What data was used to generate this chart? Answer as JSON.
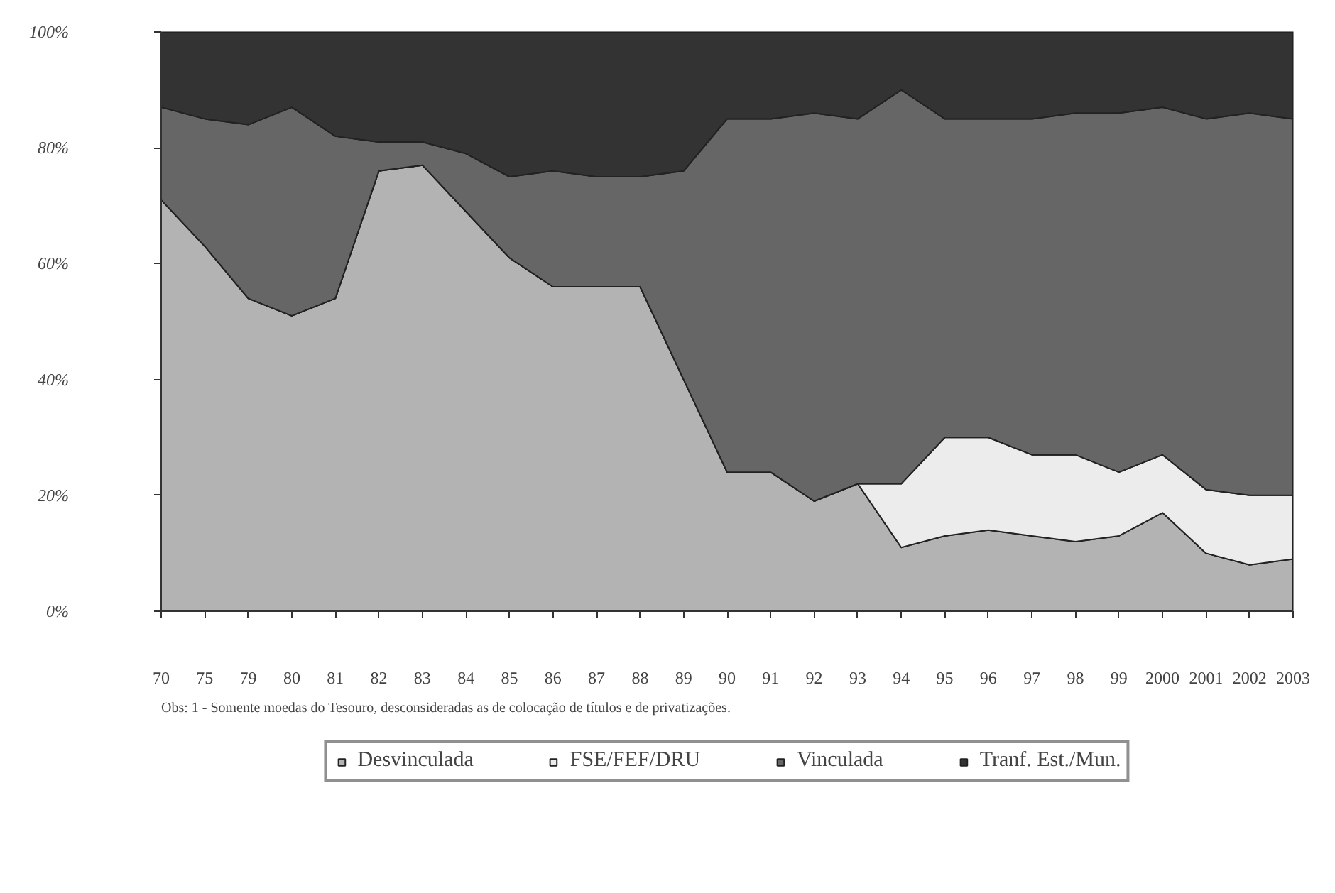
{
  "chart_data": {
    "type": "area",
    "stacked": true,
    "categories": [
      "70",
      "75",
      "79",
      "80",
      "81",
      "82",
      "83",
      "84",
      "85",
      "86",
      "87",
      "88",
      "89",
      "90",
      "91",
      "92",
      "93",
      "94",
      "95",
      "96",
      "97",
      "98",
      "99",
      "2000",
      "2001",
      "2002",
      "2003"
    ],
    "series": [
      {
        "name": "Desvinculada",
        "color": "#b3b3b3",
        "values": [
          71,
          63,
          54,
          51,
          54,
          76,
          77,
          69,
          61,
          56,
          56,
          56,
          40,
          24,
          24,
          19,
          22,
          11,
          13,
          14,
          13,
          12,
          13,
          17,
          10,
          8,
          9
        ]
      },
      {
        "name": "FSE/FEF/DRU",
        "color": "#ececec",
        "values": [
          0,
          0,
          0,
          0,
          0,
          0,
          0,
          0,
          0,
          0,
          0,
          0,
          0,
          0,
          0,
          0,
          0,
          11,
          17,
          16,
          14,
          15,
          11,
          10,
          11,
          12,
          11
        ]
      },
      {
        "name": "Vinculada",
        "color": "#666666",
        "values": [
          16,
          22,
          30,
          36,
          28,
          5,
          4,
          10,
          14,
          20,
          19,
          19,
          36,
          61,
          61,
          67,
          63,
          68,
          55,
          55,
          58,
          59,
          62,
          60,
          64,
          66,
          65
        ]
      },
      {
        "name": "Tranf. Est./Mun.",
        "color": "#333333",
        "values": [
          13,
          15,
          16,
          13,
          18,
          19,
          19,
          21,
          25,
          24,
          25,
          25,
          24,
          15,
          15,
          14,
          15,
          10,
          15,
          15,
          15,
          14,
          14,
          13,
          15,
          14,
          15
        ]
      }
    ],
    "ylim": [
      0,
      100
    ],
    "yticks": [
      {
        "value": 0,
        "label": "0%"
      },
      {
        "value": 20,
        "label": "20%"
      },
      {
        "value": 40,
        "label": "40%"
      },
      {
        "value": 60,
        "label": "60%"
      },
      {
        "value": 80,
        "label": "80%"
      },
      {
        "value": 100,
        "label": "100%"
      }
    ],
    "annotations": [
      "Obs: 1 - Somente moedas do Tesouro, desconsideradas as de colocação de títulos e de privatizações."
    ],
    "legend": "bottom"
  }
}
